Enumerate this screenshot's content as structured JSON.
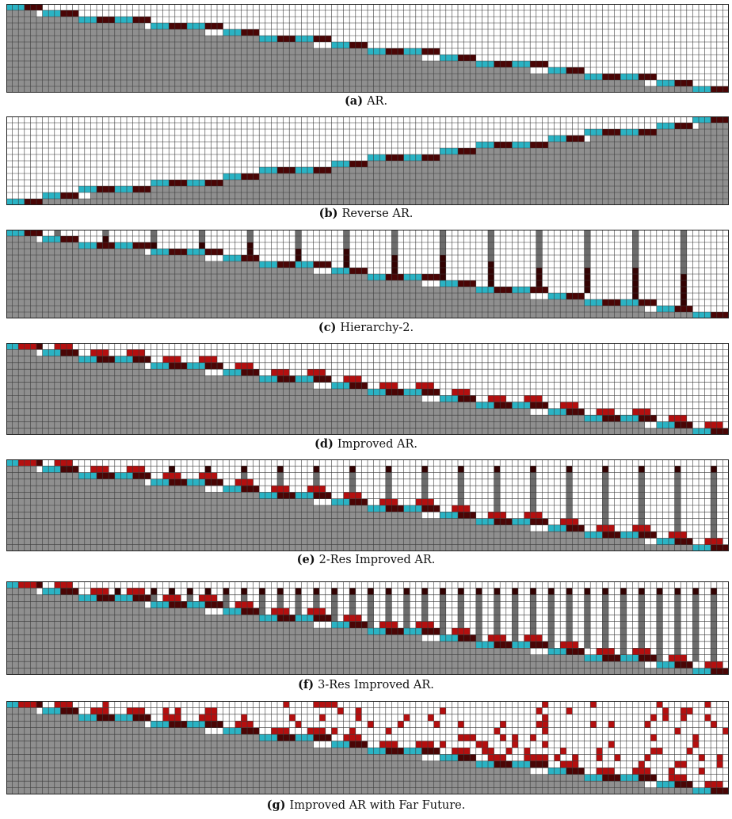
{
  "colors": {
    "background_cell": "#ffffff",
    "gridline": "#3c3c3c",
    "context": "#8f8f8f",
    "current_token": "#2ab3c4",
    "generated_token": "#4a0505",
    "improved_token": "#b40f0f",
    "hierarchy_bar": "#6c6c6c",
    "hierarchy_bar_dark": "#330202"
  },
  "grid": {
    "cols": 120,
    "rows": 14
  },
  "figures": [
    {
      "id": "a",
      "label": "(a)",
      "title": "AR.",
      "kind": "ar"
    },
    {
      "id": "b",
      "label": "(b)",
      "title": "Reverse AR.",
      "kind": "reverse"
    },
    {
      "id": "c",
      "label": "(c)",
      "title": "Hierarchy-2.",
      "kind": "hier2"
    },
    {
      "id": "d",
      "label": "(d)",
      "title": "Improved AR.",
      "kind": "improved"
    },
    {
      "id": "e",
      "label": "(e)",
      "title": "2-Res Improved AR.",
      "kind": "res2"
    },
    {
      "id": "f",
      "label": "(f)",
      "title": "3-Res Improved AR.",
      "kind": "res3"
    },
    {
      "id": "g",
      "label": "(g)",
      "title": "Improved AR with Far Future.",
      "kind": "farfuture"
    }
  ]
}
